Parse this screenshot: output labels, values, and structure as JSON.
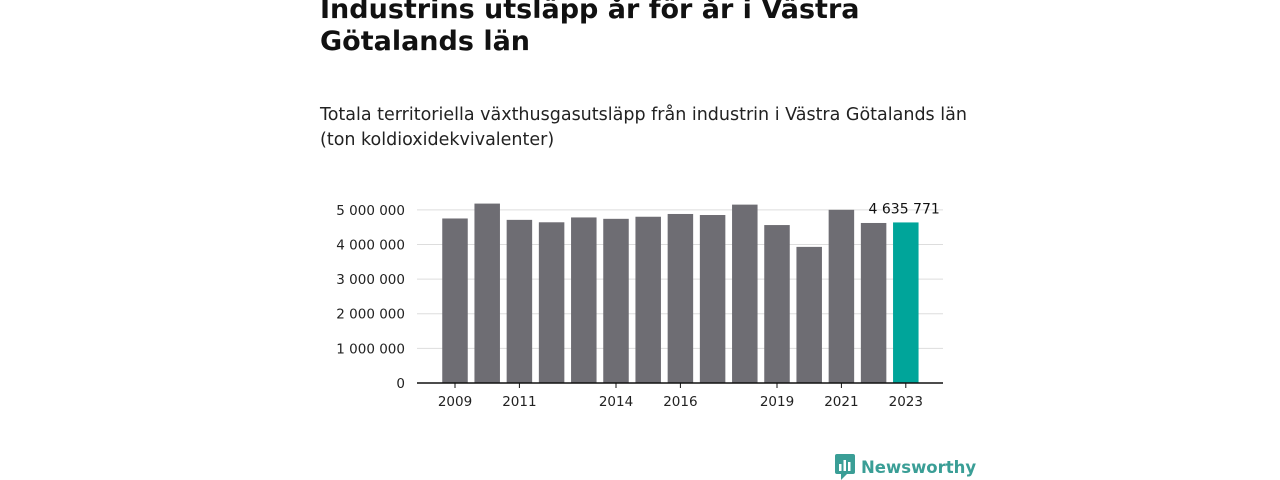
{
  "title": "Industrins utsläpp år för år i Västra Götalands län",
  "subtitle": "Totala territoriella växthusgasutsläpp från industrin i Västra Götalands län (ton koldioxidekvivalenter)",
  "brand": {
    "name": "Newsworthy",
    "color": "#3a9e96",
    "icon": "newsworthy-logo-icon"
  },
  "colors": {
    "bar": "#6e6d73",
    "highlight": "#00a59a",
    "grid": "#dddddd",
    "axis": "#111111"
  },
  "chart_data": {
    "type": "bar",
    "categories": [
      "2009",
      "2010",
      "2011",
      "2012",
      "2013",
      "2014",
      "2015",
      "2016",
      "2017",
      "2018",
      "2019",
      "2020",
      "2021",
      "2022",
      "2023"
    ],
    "values": [
      4750000,
      5180000,
      4710000,
      4640000,
      4780000,
      4740000,
      4800000,
      4880000,
      4850000,
      5150000,
      4560000,
      3930000,
      5000000,
      4620000,
      4635771
    ],
    "x_tick_labels": [
      "2009",
      "2011",
      "2014",
      "2016",
      "2019",
      "2021",
      "2023"
    ],
    "y_ticks": [
      0,
      1000000,
      2000000,
      3000000,
      4000000,
      5000000
    ],
    "y_tick_labels": [
      "0",
      "1 000 000",
      "2 000 000",
      "3 000 000",
      "4 000 000",
      "5 000 000"
    ],
    "ylim": [
      0,
      5500000
    ],
    "highlight_index": 14,
    "annotation": "4 635 771",
    "grid": true,
    "xlabel": "",
    "ylabel": ""
  }
}
